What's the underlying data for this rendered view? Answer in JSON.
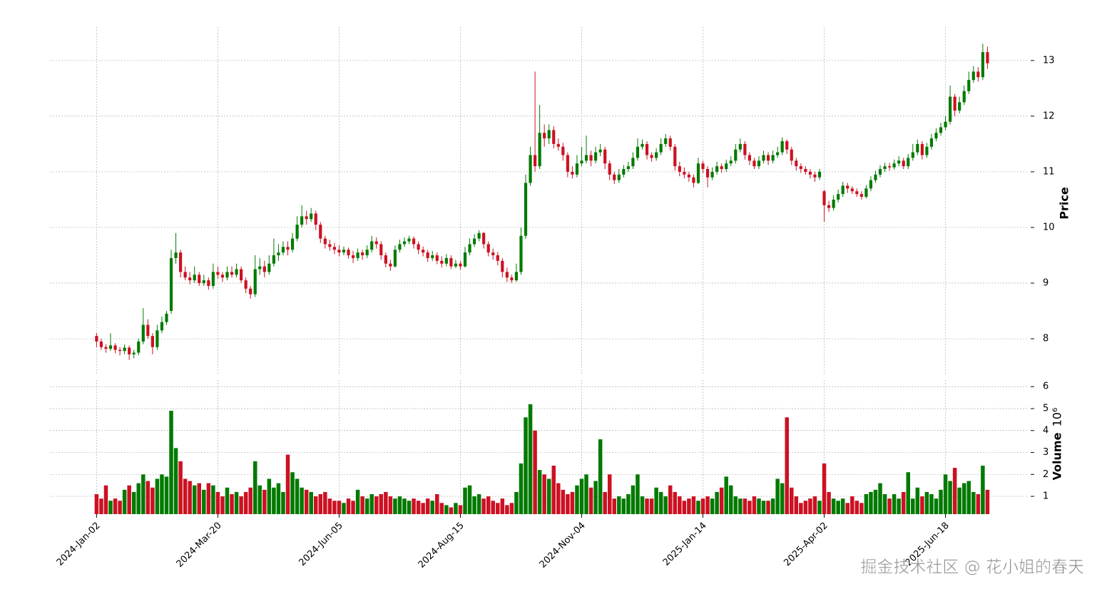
{
  "chart_data": [
    {
      "type": "candlestick",
      "ylabel": "Price",
      "ylim": [
        7.36,
        13.6
      ],
      "yticks": [
        8,
        9,
        10,
        11,
        12,
        13
      ],
      "grid": true,
      "up_color": "#007a00",
      "down_color": "#cc1122",
      "open": [
        8.05,
        7.95,
        7.85,
        7.82,
        7.88,
        7.8,
        7.78,
        7.84,
        7.72,
        7.75,
        7.95,
        8.25,
        8.05,
        7.85,
        8.15,
        8.3,
        8.5,
        9.45,
        9.55,
        9.2,
        9.1,
        9.05,
        9.15,
        9.0,
        9.05,
        8.95,
        9.2,
        9.15,
        9.1,
        9.2,
        9.15,
        9.25,
        9.05,
        8.9,
        8.8,
        9.25,
        9.3,
        9.2,
        9.35,
        9.5,
        9.55,
        9.65,
        9.6,
        9.8,
        10.05,
        10.2,
        10.15,
        10.25,
        10.05,
        9.8,
        9.7,
        9.65,
        9.6,
        9.55,
        9.6,
        9.5,
        9.45,
        9.55,
        9.5,
        9.6,
        9.75,
        9.7,
        9.5,
        9.35,
        9.3,
        9.6,
        9.7,
        9.75,
        9.8,
        9.7,
        9.6,
        9.55,
        9.45,
        9.5,
        9.4,
        9.35,
        9.45,
        9.3,
        9.35,
        9.3,
        9.55,
        9.7,
        9.8,
        9.9,
        9.7,
        9.55,
        9.5,
        9.4,
        9.2,
        9.1,
        9.05,
        9.2,
        9.85,
        10.8,
        11.3,
        11.1,
        11.7,
        11.6,
        11.75,
        11.5,
        11.45,
        11.3,
        11.0,
        10.95,
        11.15,
        11.2,
        11.3,
        11.2,
        11.35,
        11.4,
        11.15,
        10.95,
        10.85,
        10.95,
        11.05,
        11.1,
        11.25,
        11.45,
        11.5,
        11.3,
        11.25,
        11.35,
        11.5,
        11.6,
        11.45,
        11.1,
        11.0,
        10.95,
        10.9,
        10.8,
        11.15,
        11.05,
        10.9,
        11.0,
        11.1,
        11.05,
        11.15,
        11.2,
        11.4,
        11.5,
        11.3,
        11.2,
        11.1,
        11.2,
        11.3,
        11.2,
        11.3,
        11.35,
        11.55,
        11.4,
        11.2,
        11.1,
        11.05,
        11.0,
        10.95,
        10.9,
        10.65,
        10.4,
        10.35,
        10.5,
        10.6,
        10.75,
        10.7,
        10.65,
        10.6,
        10.55,
        10.7,
        10.85,
        10.95,
        11.05,
        11.1,
        11.08,
        11.15,
        11.2,
        11.1,
        11.25,
        11.35,
        11.5,
        11.3,
        11.45,
        11.6,
        11.7,
        11.8,
        11.9,
        12.35,
        12.1,
        12.25,
        12.45,
        12.65,
        12.8,
        12.7,
        13.15
      ],
      "high": [
        8.1,
        8.0,
        7.9,
        8.1,
        7.92,
        7.85,
        7.9,
        7.88,
        7.8,
        8.0,
        8.55,
        8.35,
        8.1,
        8.25,
        8.4,
        8.5,
        9.6,
        9.9,
        9.6,
        9.3,
        9.2,
        9.3,
        9.2,
        9.15,
        9.1,
        9.35,
        9.3,
        9.2,
        9.3,
        9.3,
        9.35,
        9.3,
        9.1,
        8.95,
        9.5,
        9.45,
        9.4,
        9.5,
        9.8,
        9.7,
        9.75,
        9.75,
        9.9,
        10.2,
        10.4,
        10.3,
        10.35,
        10.3,
        10.1,
        9.85,
        9.78,
        9.72,
        9.68,
        9.66,
        9.64,
        9.58,
        9.62,
        9.6,
        9.68,
        9.85,
        9.82,
        9.75,
        9.55,
        9.42,
        9.68,
        9.78,
        9.82,
        9.85,
        9.84,
        9.75,
        9.66,
        9.6,
        9.58,
        9.55,
        9.48,
        9.52,
        9.5,
        9.42,
        9.4,
        9.65,
        9.8,
        9.88,
        9.95,
        9.92,
        9.75,
        9.62,
        9.56,
        9.45,
        9.28,
        9.15,
        9.35,
        10.0,
        10.95,
        11.45,
        12.8,
        12.2,
        11.85,
        11.85,
        11.82,
        11.6,
        11.52,
        11.35,
        11.1,
        11.3,
        11.45,
        11.65,
        11.38,
        11.45,
        11.5,
        11.45,
        11.2,
        11.0,
        11.05,
        11.12,
        11.18,
        11.35,
        11.6,
        11.58,
        11.55,
        11.35,
        11.42,
        11.6,
        11.68,
        11.65,
        11.5,
        11.18,
        11.08,
        11.0,
        10.95,
        11.25,
        11.2,
        11.1,
        11.08,
        11.18,
        11.15,
        11.22,
        11.28,
        11.5,
        11.6,
        11.55,
        11.35,
        11.25,
        11.28,
        11.38,
        11.35,
        11.38,
        11.45,
        11.62,
        11.58,
        11.45,
        11.25,
        11.15,
        11.1,
        11.05,
        11.0,
        11.05,
        10.68,
        10.48,
        10.58,
        10.68,
        10.82,
        10.8,
        10.74,
        10.7,
        10.65,
        10.76,
        10.92,
        11.02,
        11.12,
        11.16,
        11.16,
        11.22,
        11.28,
        11.25,
        11.32,
        11.5,
        11.58,
        11.55,
        11.52,
        11.68,
        11.78,
        11.88,
        12.0,
        12.55,
        12.4,
        12.35,
        12.55,
        12.8,
        12.9,
        12.88,
        13.3,
        13.25
      ],
      "low": [
        7.85,
        7.8,
        7.75,
        7.78,
        7.74,
        7.7,
        7.72,
        7.62,
        7.65,
        7.7,
        7.9,
        8.0,
        7.72,
        7.8,
        8.1,
        8.25,
        8.45,
        9.35,
        9.1,
        9.05,
        8.98,
        9.0,
        8.95,
        8.95,
        8.88,
        8.9,
        9.08,
        9.02,
        9.05,
        9.1,
        9.1,
        9.0,
        8.82,
        8.72,
        8.75,
        9.15,
        9.1,
        9.15,
        9.3,
        9.4,
        9.5,
        9.5,
        9.55,
        9.75,
        10.0,
        10.05,
        10.1,
        9.95,
        9.72,
        9.62,
        9.58,
        9.52,
        9.48,
        9.5,
        9.44,
        9.36,
        9.4,
        9.42,
        9.45,
        9.55,
        9.62,
        9.42,
        9.28,
        9.22,
        9.28,
        9.55,
        9.65,
        9.7,
        9.62,
        9.52,
        9.48,
        9.38,
        9.4,
        9.34,
        9.28,
        9.3,
        9.25,
        9.27,
        9.24,
        9.28,
        9.5,
        9.65,
        9.75,
        9.62,
        9.48,
        9.42,
        9.32,
        9.1,
        9.02,
        9.0,
        9.02,
        9.15,
        9.8,
        10.75,
        11.0,
        11.05,
        11.45,
        11.5,
        11.42,
        11.38,
        11.2,
        10.9,
        10.88,
        10.9,
        11.1,
        11.15,
        11.1,
        11.15,
        11.28,
        11.05,
        10.85,
        10.78,
        10.8,
        10.9,
        11.0,
        11.05,
        11.2,
        11.4,
        11.22,
        11.18,
        11.2,
        11.3,
        11.45,
        11.38,
        11.02,
        10.92,
        10.88,
        10.82,
        10.72,
        10.78,
        10.98,
        10.72,
        10.85,
        10.95,
        10.98,
        11.0,
        11.1,
        11.15,
        11.35,
        11.22,
        11.12,
        11.05,
        11.05,
        11.15,
        11.12,
        11.15,
        11.25,
        11.3,
        11.32,
        11.12,
        11.02,
        10.98,
        10.95,
        10.88,
        10.82,
        10.85,
        10.1,
        10.28,
        10.3,
        10.45,
        10.55,
        10.62,
        10.6,
        10.55,
        10.5,
        10.52,
        10.65,
        10.8,
        10.9,
        11.0,
        11.02,
        11.04,
        11.1,
        11.05,
        11.05,
        11.2,
        11.3,
        11.22,
        11.25,
        11.4,
        11.55,
        11.65,
        11.75,
        11.85,
        12.0,
        12.05,
        12.2,
        12.4,
        12.6,
        12.62,
        12.65,
        12.85
      ],
      "close": [
        7.95,
        7.85,
        7.82,
        7.88,
        7.8,
        7.78,
        7.84,
        7.72,
        7.75,
        7.95,
        8.25,
        8.05,
        7.85,
        8.15,
        8.3,
        8.45,
        9.45,
        9.55,
        9.2,
        9.1,
        9.05,
        9.15,
        9.0,
        9.05,
        8.95,
        9.2,
        9.15,
        9.1,
        9.2,
        9.15,
        9.25,
        9.05,
        8.9,
        8.8,
        9.25,
        9.3,
        9.2,
        9.35,
        9.5,
        9.55,
        9.65,
        9.6,
        9.8,
        10.05,
        10.2,
        10.15,
        10.25,
        10.05,
        9.8,
        9.7,
        9.65,
        9.6,
        9.55,
        9.6,
        9.5,
        9.45,
        9.55,
        9.5,
        9.6,
        9.75,
        9.7,
        9.5,
        9.35,
        9.3,
        9.6,
        9.7,
        9.75,
        9.8,
        9.7,
        9.6,
        9.55,
        9.45,
        9.5,
        9.4,
        9.35,
        9.45,
        9.3,
        9.35,
        9.3,
        9.55,
        9.7,
        9.8,
        9.9,
        9.7,
        9.55,
        9.5,
        9.4,
        9.2,
        9.1,
        9.05,
        9.2,
        9.85,
        10.8,
        11.3,
        11.1,
        11.7,
        11.6,
        11.75,
        11.5,
        11.45,
        11.3,
        11.0,
        10.95,
        11.15,
        11.2,
        11.3,
        11.2,
        11.35,
        11.4,
        11.15,
        10.95,
        10.85,
        10.95,
        11.05,
        11.1,
        11.25,
        11.45,
        11.5,
        11.3,
        11.25,
        11.35,
        11.5,
        11.6,
        11.45,
        11.1,
        11.0,
        10.95,
        10.9,
        10.8,
        11.15,
        11.05,
        10.9,
        11.0,
        11.1,
        11.05,
        11.15,
        11.2,
        11.4,
        11.5,
        11.3,
        11.2,
        11.1,
        11.2,
        11.3,
        11.2,
        11.3,
        11.35,
        11.55,
        11.4,
        11.2,
        11.1,
        11.05,
        11.0,
        10.95,
        10.9,
        11.0,
        10.4,
        10.35,
        10.5,
        10.6,
        10.75,
        10.7,
        10.65,
        10.6,
        10.55,
        10.7,
        10.85,
        10.95,
        11.05,
        11.1,
        11.08,
        11.15,
        11.2,
        11.1,
        11.25,
        11.35,
        11.5,
        11.3,
        11.45,
        11.6,
        11.7,
        11.8,
        11.9,
        12.35,
        12.1,
        12.25,
        12.45,
        12.65,
        12.8,
        12.7,
        13.15,
        12.95
      ]
    },
    {
      "type": "bar",
      "ylabel": "Volume",
      "ylabel_exponent": "10⁶",
      "ylim": [
        0.19,
        6.3
      ],
      "yticks": [
        1,
        2,
        3,
        4,
        5,
        6
      ],
      "grid": true,
      "xlim": [
        -10,
        199.5
      ],
      "xticks": [
        {
          "value": 0,
          "label": "2024-Jan-02"
        },
        {
          "value": 26,
          "label": "2024-Mar-20"
        },
        {
          "value": 52,
          "label": "2024-Jun-05"
        },
        {
          "value": 78,
          "label": "2024-Aug-15"
        },
        {
          "value": 104,
          "label": "2024-Nov-04"
        },
        {
          "value": 130,
          "label": "2025-Jan-14"
        },
        {
          "value": 156,
          "label": "2025-Apr-02"
        },
        {
          "value": 182,
          "label": "2025-Jun-18"
        }
      ],
      "values": [
        1.1,
        0.9,
        1.5,
        0.8,
        0.9,
        0.8,
        1.3,
        1.5,
        1.2,
        1.6,
        2.0,
        1.7,
        1.4,
        1.8,
        2.0,
        1.9,
        4.9,
        3.2,
        2.6,
        1.8,
        1.7,
        1.5,
        1.6,
        1.3,
        1.6,
        1.5,
        1.2,
        1.0,
        1.4,
        1.1,
        1.2,
        1.0,
        1.2,
        1.4,
        2.6,
        1.5,
        1.3,
        1.8,
        1.4,
        1.6,
        1.2,
        2.9,
        2.1,
        1.8,
        1.4,
        1.3,
        1.2,
        1.0,
        1.1,
        1.2,
        0.9,
        0.8,
        0.8,
        0.7,
        0.9,
        0.8,
        1.3,
        1.0,
        0.9,
        1.1,
        1.0,
        1.1,
        1.2,
        1.0,
        0.9,
        1.0,
        0.9,
        0.8,
        0.9,
        0.8,
        0.7,
        0.9,
        0.8,
        1.1,
        0.7,
        0.6,
        0.5,
        0.7,
        0.6,
        1.4,
        1.5,
        1.0,
        1.1,
        0.9,
        1.0,
        0.8,
        0.7,
        0.9,
        0.6,
        0.7,
        1.2,
        2.5,
        4.6,
        5.2,
        4.0,
        2.2,
        2.0,
        1.8,
        2.4,
        1.6,
        1.3,
        1.1,
        1.2,
        1.5,
        1.8,
        2.0,
        1.4,
        1.7,
        3.6,
        1.2,
        2.0,
        0.9,
        1.0,
        0.9,
        1.1,
        1.5,
        2.0,
        1.0,
        0.9,
        0.9,
        1.4,
        1.2,
        1.0,
        1.5,
        1.2,
        1.0,
        0.8,
        0.9,
        1.0,
        0.8,
        0.9,
        1.0,
        0.9,
        1.2,
        1.4,
        1.9,
        1.5,
        1.0,
        0.9,
        0.9,
        0.8,
        1.0,
        0.9,
        0.8,
        0.8,
        0.9,
        1.8,
        1.6,
        4.6,
        1.4,
        1.0,
        0.7,
        0.8,
        0.9,
        1.0,
        0.8,
        2.5,
        1.2,
        0.9,
        0.8,
        0.9,
        0.7,
        1.0,
        0.8,
        0.7,
        1.1,
        1.2,
        1.3,
        1.6,
        1.1,
        0.9,
        1.1,
        0.9,
        1.2,
        2.1,
        0.9,
        1.4,
        1.0,
        1.2,
        1.1,
        0.9,
        1.3,
        2.0,
        1.7,
        2.3,
        1.4,
        1.6,
        1.7,
        1.2,
        1.1,
        2.4,
        1.3
      ]
    }
  ],
  "watermark": "掘金技术社区 @ 花小姐的春天"
}
